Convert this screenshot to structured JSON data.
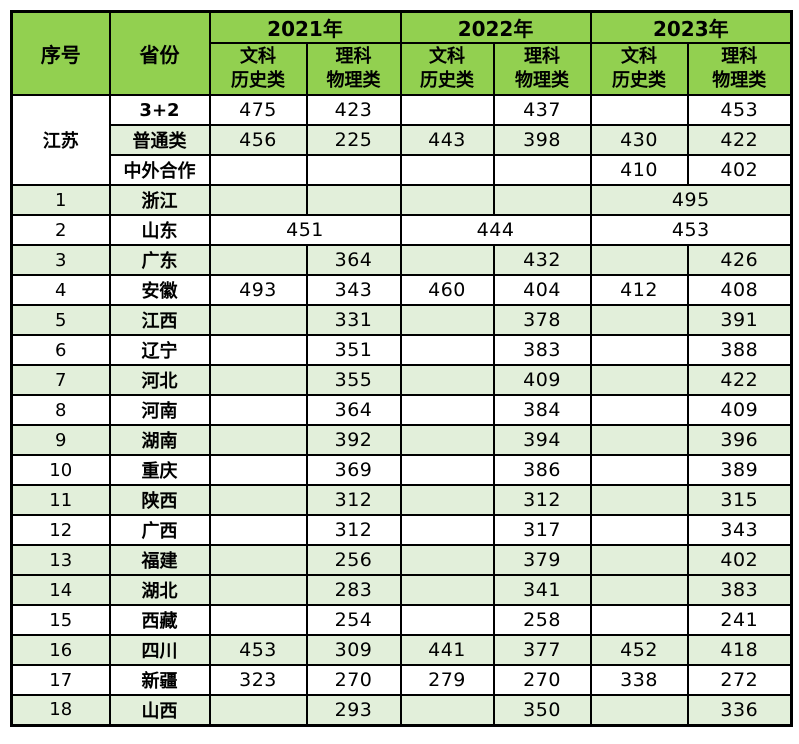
{
  "colors": {
    "header_green": "#92D050",
    "row_green": "#E2EFDA",
    "border": "#000000",
    "text": "#000000",
    "background": "#FFFFFF"
  },
  "table": {
    "header": {
      "no": "序号",
      "province": "省份",
      "years": [
        "2021年",
        "2022年",
        "2023年"
      ],
      "subjects": [
        "文科\n历史类",
        "理科\n物理类"
      ]
    },
    "jiangsu": {
      "name": "江苏",
      "rows": [
        {
          "category": "3+2",
          "shaded": false,
          "cells": [
            {
              "v": "475"
            },
            {
              "v": "423"
            },
            {
              "v": ""
            },
            {
              "v": "437"
            },
            {
              "v": ""
            },
            {
              "v": "453"
            }
          ]
        },
        {
          "category": "普通类",
          "shaded": true,
          "cells": [
            {
              "v": "456"
            },
            {
              "v": "225"
            },
            {
              "v": "443"
            },
            {
              "v": "398"
            },
            {
              "v": "430"
            },
            {
              "v": "422"
            }
          ]
        },
        {
          "category": "中外合作",
          "shaded": false,
          "cells": [
            {
              "v": ""
            },
            {
              "v": ""
            },
            {
              "v": ""
            },
            {
              "v": ""
            },
            {
              "v": "410"
            },
            {
              "v": "402"
            }
          ]
        }
      ]
    },
    "provinces": [
      {
        "no": "1",
        "name": "浙江",
        "shaded": true,
        "cells": [
          {
            "v": ""
          },
          {
            "v": ""
          },
          {
            "v": ""
          },
          {
            "v": ""
          },
          {
            "v": "495",
            "span": 2
          }
        ]
      },
      {
        "no": "2",
        "name": "山东",
        "shaded": false,
        "cells": [
          {
            "v": "451",
            "span": 2
          },
          {
            "v": "444",
            "span": 2
          },
          {
            "v": "453",
            "span": 2
          }
        ]
      },
      {
        "no": "3",
        "name": "广东",
        "shaded": true,
        "cells": [
          {
            "v": ""
          },
          {
            "v": "364"
          },
          {
            "v": ""
          },
          {
            "v": "432"
          },
          {
            "v": ""
          },
          {
            "v": "426"
          }
        ]
      },
      {
        "no": "4",
        "name": "安徽",
        "shaded": false,
        "cells": [
          {
            "v": "493"
          },
          {
            "v": "343"
          },
          {
            "v": "460"
          },
          {
            "v": "404"
          },
          {
            "v": "412"
          },
          {
            "v": "408"
          }
        ]
      },
      {
        "no": "5",
        "name": "江西",
        "shaded": true,
        "cells": [
          {
            "v": ""
          },
          {
            "v": "331"
          },
          {
            "v": ""
          },
          {
            "v": "378"
          },
          {
            "v": ""
          },
          {
            "v": "391"
          }
        ]
      },
      {
        "no": "6",
        "name": "辽宁",
        "shaded": false,
        "cells": [
          {
            "v": ""
          },
          {
            "v": "351"
          },
          {
            "v": ""
          },
          {
            "v": "383"
          },
          {
            "v": ""
          },
          {
            "v": "388"
          }
        ]
      },
      {
        "no": "7",
        "name": "河北",
        "shaded": true,
        "cells": [
          {
            "v": ""
          },
          {
            "v": "355"
          },
          {
            "v": ""
          },
          {
            "v": "409"
          },
          {
            "v": ""
          },
          {
            "v": "422"
          }
        ]
      },
      {
        "no": "8",
        "name": "河南",
        "shaded": false,
        "cells": [
          {
            "v": ""
          },
          {
            "v": "364"
          },
          {
            "v": ""
          },
          {
            "v": "384"
          },
          {
            "v": ""
          },
          {
            "v": "409"
          }
        ]
      },
      {
        "no": "9",
        "name": "湖南",
        "shaded": true,
        "cells": [
          {
            "v": ""
          },
          {
            "v": "392"
          },
          {
            "v": ""
          },
          {
            "v": "394"
          },
          {
            "v": ""
          },
          {
            "v": "396"
          }
        ]
      },
      {
        "no": "10",
        "name": "重庆",
        "shaded": false,
        "cells": [
          {
            "v": ""
          },
          {
            "v": "369"
          },
          {
            "v": ""
          },
          {
            "v": "386"
          },
          {
            "v": ""
          },
          {
            "v": "389"
          }
        ]
      },
      {
        "no": "11",
        "name": "陕西",
        "shaded": true,
        "cells": [
          {
            "v": ""
          },
          {
            "v": "312"
          },
          {
            "v": ""
          },
          {
            "v": "312"
          },
          {
            "v": ""
          },
          {
            "v": "315"
          }
        ]
      },
      {
        "no": "12",
        "name": "广西",
        "shaded": false,
        "cells": [
          {
            "v": ""
          },
          {
            "v": "312"
          },
          {
            "v": ""
          },
          {
            "v": "317"
          },
          {
            "v": ""
          },
          {
            "v": "343"
          }
        ]
      },
      {
        "no": "13",
        "name": "福建",
        "shaded": true,
        "cells": [
          {
            "v": ""
          },
          {
            "v": "256"
          },
          {
            "v": ""
          },
          {
            "v": "379"
          },
          {
            "v": ""
          },
          {
            "v": "402"
          }
        ]
      },
      {
        "no": "14",
        "name": "湖北",
        "shaded": true,
        "cells": [
          {
            "v": ""
          },
          {
            "v": "283"
          },
          {
            "v": ""
          },
          {
            "v": "341"
          },
          {
            "v": ""
          },
          {
            "v": "383"
          }
        ]
      },
      {
        "no": "15",
        "name": "西藏",
        "shaded": false,
        "cells": [
          {
            "v": ""
          },
          {
            "v": "254"
          },
          {
            "v": ""
          },
          {
            "v": "258"
          },
          {
            "v": ""
          },
          {
            "v": "241"
          }
        ]
      },
      {
        "no": "16",
        "name": "四川",
        "shaded": true,
        "cells": [
          {
            "v": "453"
          },
          {
            "v": "309"
          },
          {
            "v": "441"
          },
          {
            "v": "377"
          },
          {
            "v": "452"
          },
          {
            "v": "418"
          }
        ]
      },
      {
        "no": "17",
        "name": "新疆",
        "shaded": false,
        "cells": [
          {
            "v": "323"
          },
          {
            "v": "270"
          },
          {
            "v": "279"
          },
          {
            "v": "270"
          },
          {
            "v": "338"
          },
          {
            "v": "272"
          }
        ]
      },
      {
        "no": "18",
        "name": "山西",
        "shaded": true,
        "cells": [
          {
            "v": ""
          },
          {
            "v": "293"
          },
          {
            "v": ""
          },
          {
            "v": "350"
          },
          {
            "v": ""
          },
          {
            "v": "336"
          }
        ]
      }
    ]
  },
  "chart_data": {
    "type": "table",
    "title": "",
    "columns": [
      "序号",
      "省份",
      "2021年文科历史类",
      "2021年理科物理类",
      "2022年文科历史类",
      "2022年理科物理类",
      "2023年文科历史类",
      "2023年理科物理类"
    ],
    "rows": [
      [
        "江苏",
        "3+2",
        475,
        423,
        null,
        437,
        null,
        453
      ],
      [
        "江苏",
        "普通类",
        456,
        225,
        443,
        398,
        430,
        422
      ],
      [
        "江苏",
        "中外合作",
        null,
        null,
        null,
        null,
        410,
        402
      ],
      [
        1,
        "浙江",
        null,
        null,
        null,
        null,
        495,
        null
      ],
      [
        2,
        "山东",
        451,
        null,
        444,
        null,
        453,
        null
      ],
      [
        3,
        "广东",
        null,
        364,
        null,
        432,
        null,
        426
      ],
      [
        4,
        "安徽",
        493,
        343,
        460,
        404,
        412,
        408
      ],
      [
        5,
        "江西",
        null,
        331,
        null,
        378,
        null,
        391
      ],
      [
        6,
        "辽宁",
        null,
        351,
        null,
        383,
        null,
        388
      ],
      [
        7,
        "河北",
        null,
        355,
        null,
        409,
        null,
        422
      ],
      [
        8,
        "河南",
        null,
        364,
        null,
        384,
        null,
        409
      ],
      [
        9,
        "湖南",
        null,
        392,
        null,
        394,
        null,
        396
      ],
      [
        10,
        "重庆",
        null,
        369,
        null,
        386,
        null,
        389
      ],
      [
        11,
        "陕西",
        null,
        312,
        null,
        312,
        null,
        315
      ],
      [
        12,
        "广西",
        null,
        312,
        null,
        317,
        null,
        343
      ],
      [
        13,
        "福建",
        null,
        256,
        null,
        379,
        null,
        402
      ],
      [
        14,
        "湖北",
        null,
        283,
        null,
        341,
        null,
        383
      ],
      [
        15,
        "西藏",
        null,
        254,
        null,
        258,
        null,
        241
      ],
      [
        16,
        "四川",
        453,
        309,
        441,
        377,
        452,
        418
      ],
      [
        17,
        "新疆",
        323,
        270,
        279,
        270,
        338,
        272
      ],
      [
        18,
        "山西",
        null,
        293,
        null,
        350,
        null,
        336
      ]
    ],
    "merged_cells": [
      "江苏 name cell spans its 3 category rows in the 序号 column",
      "浙江 2023 value 495 spans the 文科历史类+理科物理类 columns",
      "山东 values 451/444/453 each span the 文科历史类+理科物理类 columns of their year"
    ],
    "layout_hints": {
      "grid": "black 2px borders",
      "header_fill": "#92D050",
      "alternate_row_fill": "#E2EFDA"
    }
  }
}
